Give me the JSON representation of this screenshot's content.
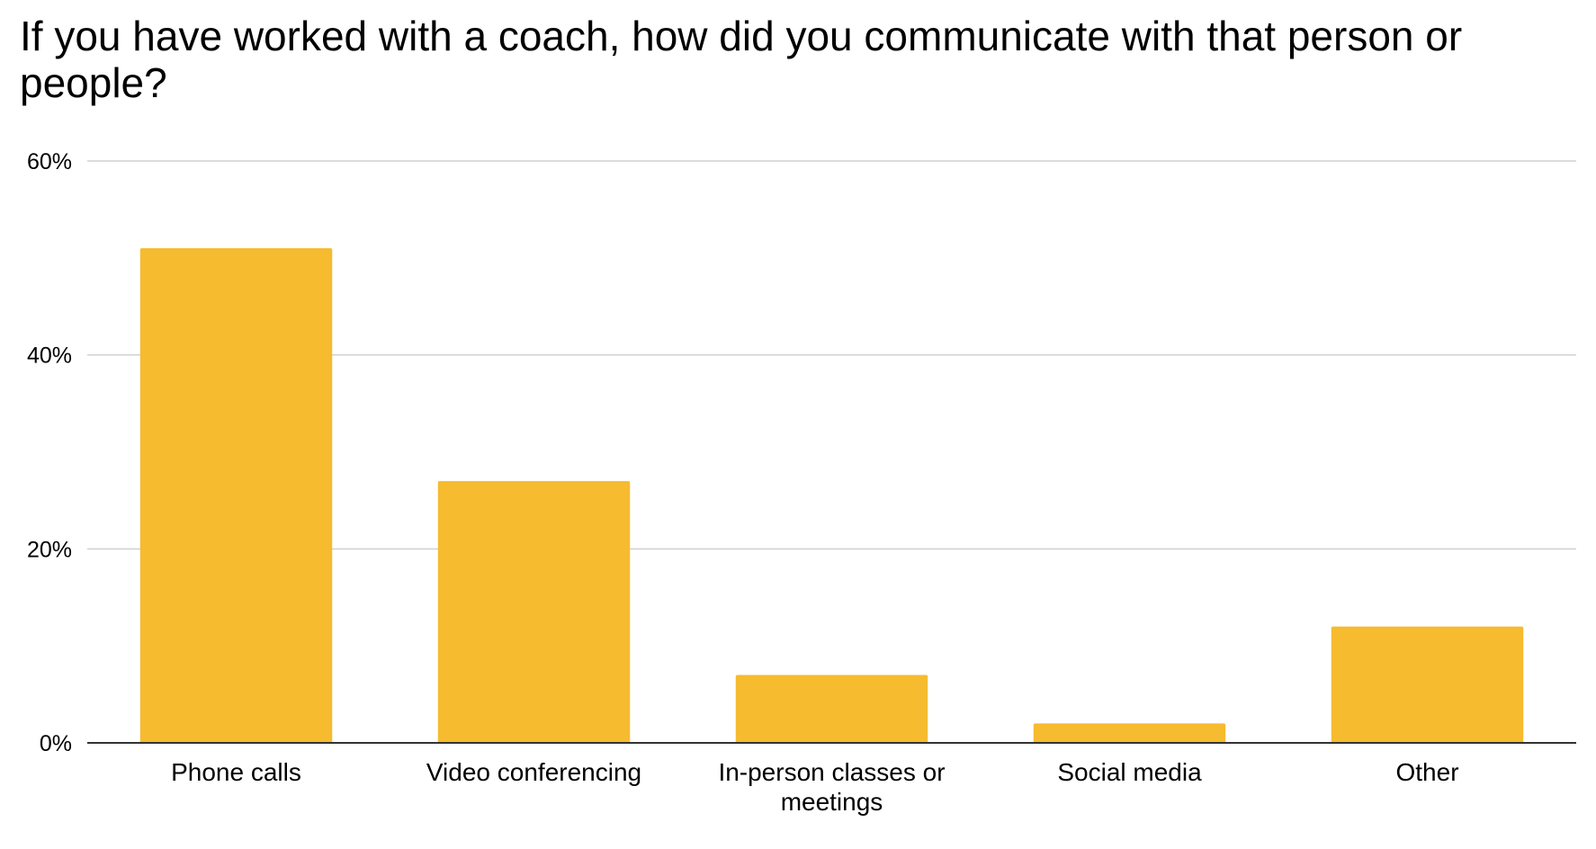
{
  "chart_data": {
    "type": "bar",
    "title": "If you have worked with a coach, how did you communicate with that person or people?",
    "categories": [
      "Phone calls",
      "Video conferencing",
      "In-person classes or meetings",
      "Social media",
      "Other"
    ],
    "category_lines": [
      [
        "Phone calls"
      ],
      [
        "Video conferencing"
      ],
      [
        "In-person classes or",
        "meetings"
      ],
      [
        "Social media"
      ],
      [
        "Other"
      ]
    ],
    "values": [
      51,
      27,
      7,
      2,
      12
    ],
    "ylim": [
      0,
      60
    ],
    "yticks": [
      0,
      20,
      40,
      60
    ],
    "ytick_labels": [
      "0%",
      "20%",
      "40%",
      "60%"
    ],
    "xlabel": "",
    "ylabel": "",
    "grid": true,
    "legend": "none",
    "bar_color": "#F6BB2F",
    "grid_color": "#D0D0D0",
    "axis_color": "#333333"
  }
}
